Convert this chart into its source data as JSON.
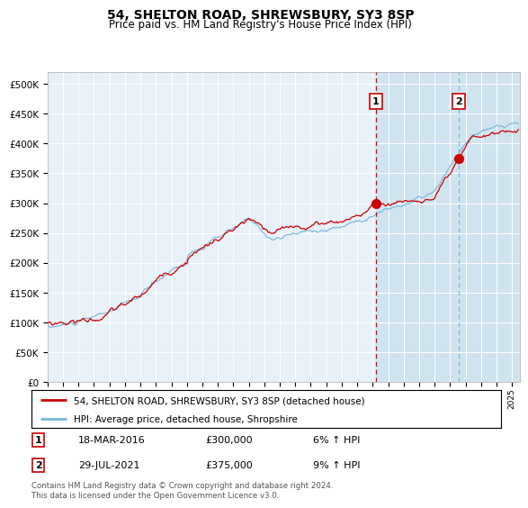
{
  "title": "54, SHELTON ROAD, SHREWSBURY, SY3 8SP",
  "subtitle": "Price paid vs. HM Land Registry's House Price Index (HPI)",
  "legend_line1": "54, SHELTON ROAD, SHREWSBURY, SY3 8SP (detached house)",
  "legend_line2": "HPI: Average price, detached house, Shropshire",
  "transaction1_date": "18-MAR-2016",
  "transaction1_price": 300000,
  "transaction1_label": "6% ↑ HPI",
  "transaction1_x": 2016.21,
  "transaction2_date": "29-JUL-2021",
  "transaction2_price": 375000,
  "transaction2_label": "9% ↑ HPI",
  "transaction2_x": 2021.57,
  "hpi_color": "#7ab8d9",
  "price_color": "#cc0000",
  "marker_color": "#cc0000",
  "vline1_color": "#cc0000",
  "vline2_color": "#7ab8d9",
  "background_chart": "#e8f0f8",
  "background_shaded": "#d0e4f0",
  "ylim": [
    0,
    520000
  ],
  "xlim_start": 1995,
  "xlim_end": 2025.5,
  "footer": "Contains HM Land Registry data © Crown copyright and database right 2024.\nThis data is licensed under the Open Government Licence v3.0."
}
